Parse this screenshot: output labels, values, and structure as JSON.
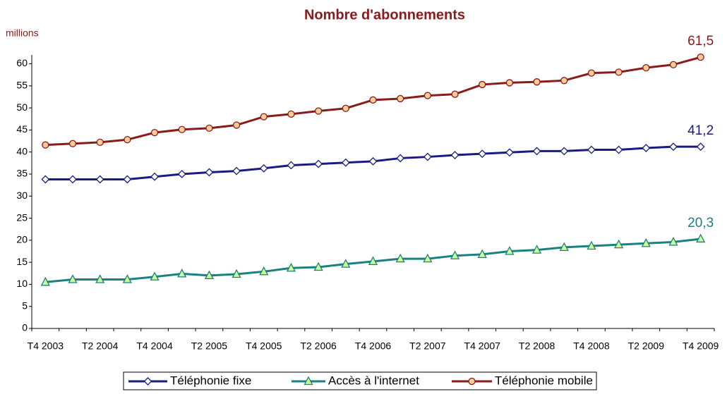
{
  "chart_data": {
    "type": "line",
    "title": "Nombre d'abonnements",
    "y_label": "millions",
    "categories": [
      "T4 2003",
      null,
      "T2 2004",
      null,
      "T4 2004",
      null,
      "T2 2005",
      null,
      "T4 2005",
      null,
      "T2 2006",
      null,
      "T4 2006",
      null,
      "T2 2007",
      null,
      "T4 2007",
      null,
      "T2 2008",
      null,
      "T4 2008",
      null,
      "T2 2009",
      null,
      "T4 2009"
    ],
    "ylim": [
      0,
      62
    ],
    "yticks": [
      0,
      5,
      10,
      15,
      20,
      25,
      30,
      35,
      40,
      45,
      50,
      55,
      60
    ],
    "grid": false,
    "legend": "bottom",
    "series": [
      {
        "name": "Téléphonie fixe",
        "color": "#1a1a80",
        "marker": "diamond",
        "marker_color": "#ffffff",
        "values": [
          33.8,
          33.8,
          33.8,
          33.8,
          34.4,
          35.0,
          35.4,
          35.7,
          36.3,
          37.0,
          37.3,
          37.6,
          37.9,
          38.6,
          38.9,
          39.3,
          39.6,
          39.9,
          40.2,
          40.2,
          40.5,
          40.5,
          40.9,
          41.2,
          41.2
        ],
        "value_labels": [
          null,
          null,
          null,
          null,
          null,
          null,
          null,
          null,
          null,
          null,
          null,
          null,
          null,
          null,
          null,
          null,
          null,
          null,
          null,
          null,
          null,
          null,
          null,
          null,
          "41,2"
        ]
      },
      {
        "name": "Accès à l'internet",
        "color": "#1a8080",
        "marker": "triangle",
        "marker_color": "#ccff99",
        "values": [
          10.5,
          11.1,
          11.1,
          11.1,
          11.7,
          12.4,
          12.0,
          12.3,
          12.9,
          13.7,
          13.9,
          14.6,
          15.2,
          15.8,
          15.8,
          16.5,
          16.8,
          17.5,
          17.8,
          18.4,
          18.7,
          19.0,
          19.3,
          19.6,
          20.3
        ],
        "value_labels": [
          null,
          null,
          null,
          null,
          null,
          null,
          null,
          null,
          null,
          null,
          null,
          null,
          null,
          null,
          null,
          null,
          null,
          null,
          null,
          null,
          null,
          null,
          null,
          null,
          "20,3"
        ]
      },
      {
        "name": "Téléphonie mobile",
        "color": "#8b1a1a",
        "marker": "circle",
        "marker_color": "#ffcc99",
        "values": [
          41.6,
          41.9,
          42.2,
          42.8,
          44.4,
          45.1,
          45.4,
          46.1,
          48.0,
          48.6,
          49.3,
          49.9,
          51.8,
          52.1,
          52.8,
          53.1,
          55.3,
          55.7,
          55.9,
          56.2,
          57.9,
          58.1,
          59.1,
          59.8,
          61.5
        ],
        "value_labels": [
          null,
          null,
          null,
          null,
          null,
          null,
          null,
          null,
          null,
          null,
          null,
          null,
          null,
          null,
          null,
          null,
          null,
          null,
          null,
          null,
          null,
          null,
          null,
          null,
          "61,5"
        ]
      }
    ]
  }
}
